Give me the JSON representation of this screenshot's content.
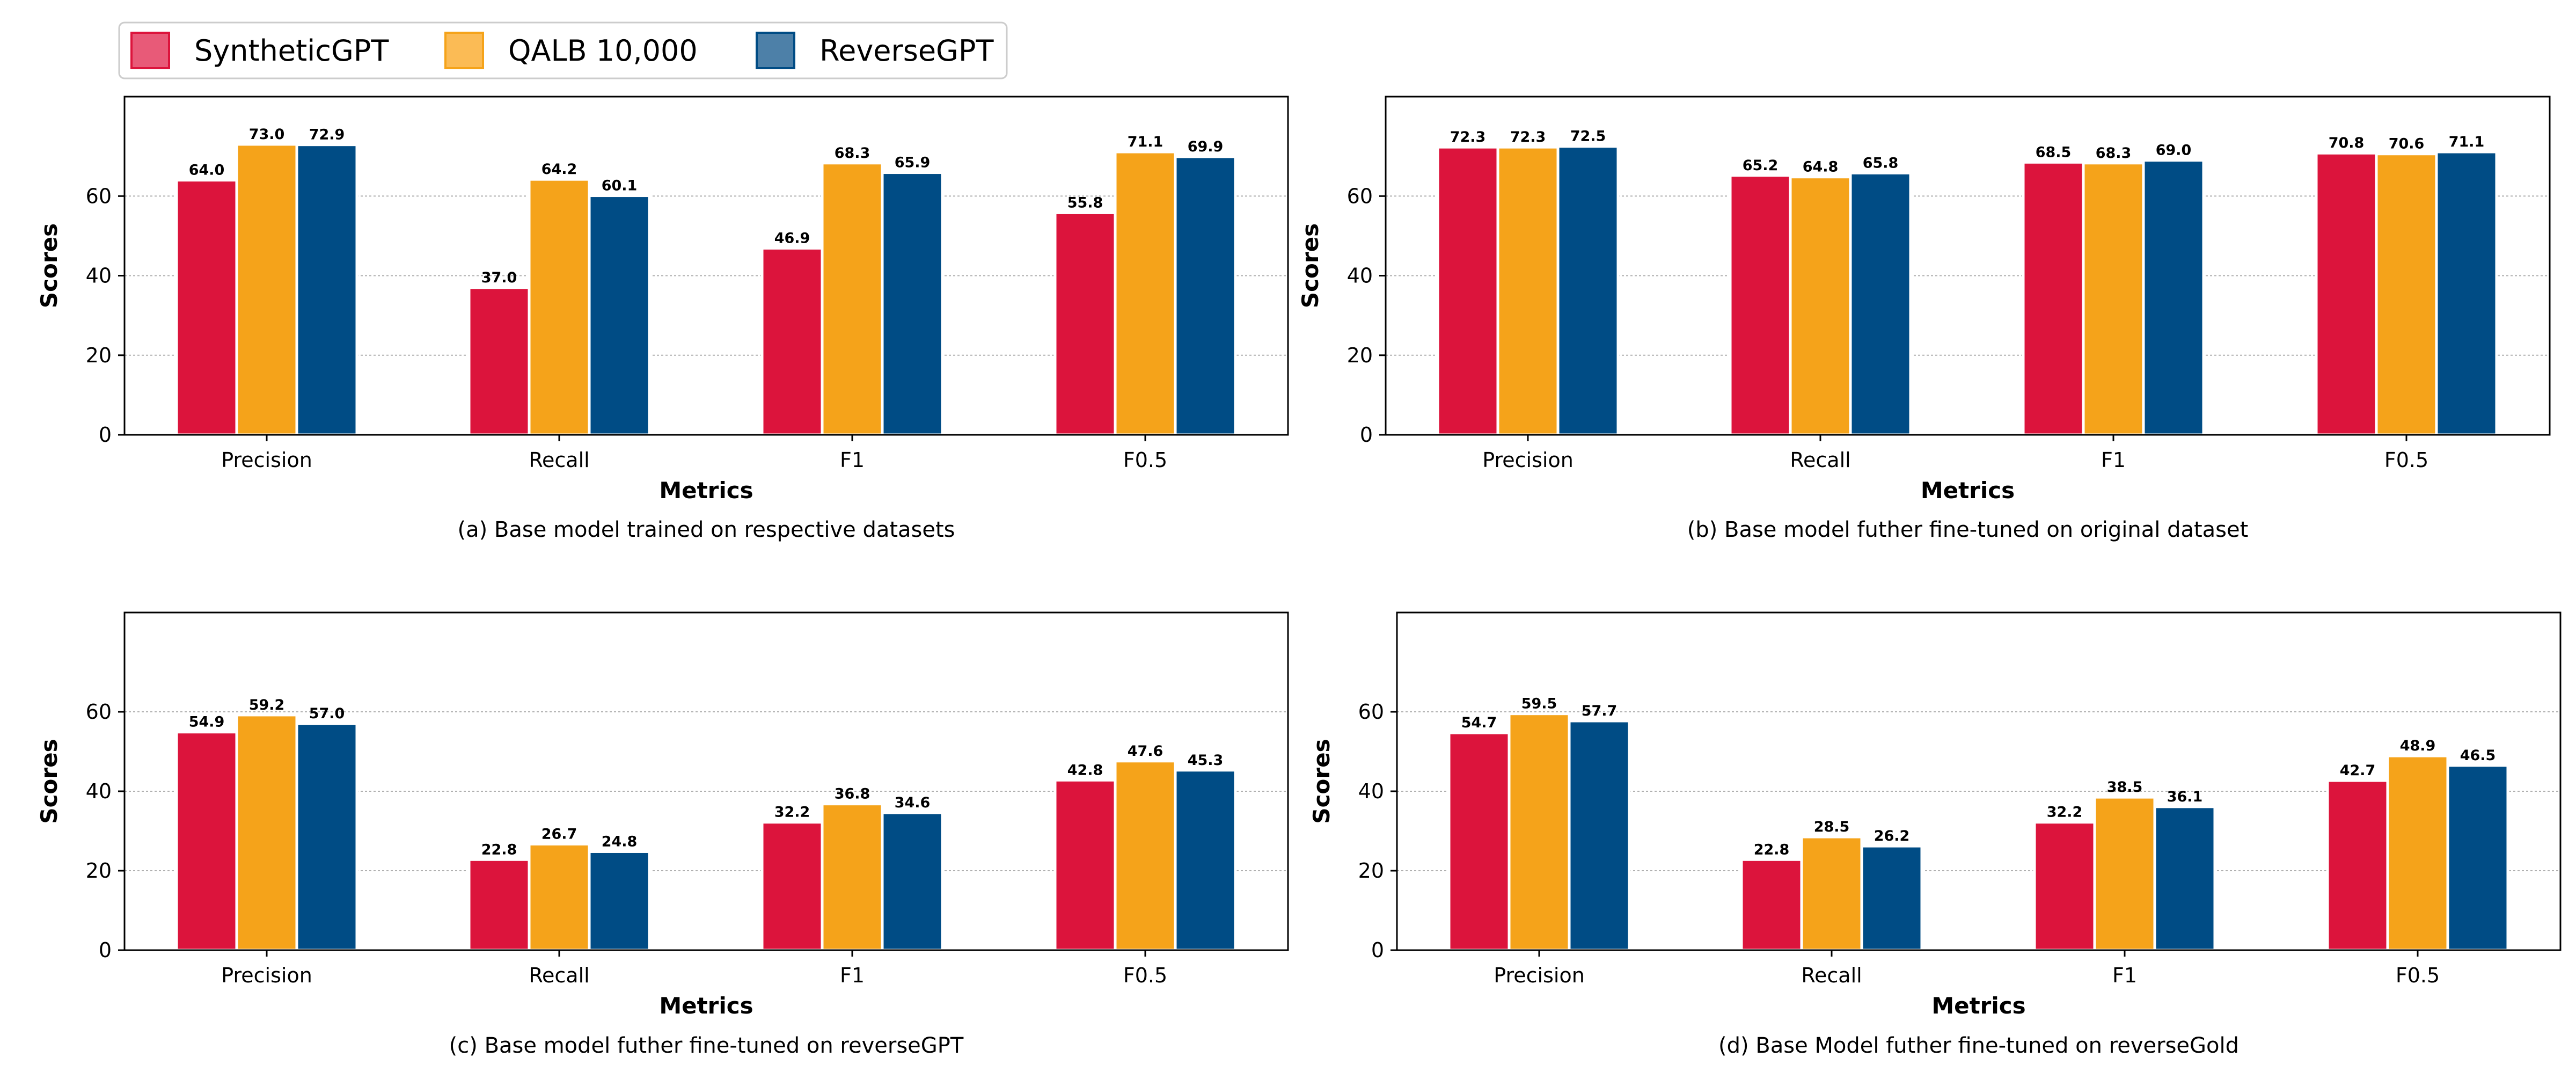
{
  "legend": {
    "entries": [
      {
        "name": "SyntheticGPT",
        "color": "#DC143C",
        "swatch_color": "#E85A78"
      },
      {
        "name": "QALB 10,000",
        "color": "#F5A31A",
        "swatch_color": "#FBBB55"
      },
      {
        "name": "ReverseGPT",
        "color": "#004C85",
        "swatch_color": "#4D80A8"
      }
    ]
  },
  "chart_data": [
    {
      "type": "bar",
      "title": "(a) Base model trained on respective datasets",
      "xlabel": "Metrics",
      "ylabel": "Scores",
      "ylim": [
        0,
        85
      ],
      "yticks": [
        0,
        20,
        40,
        60
      ],
      "categories": [
        "Precision",
        "Recall",
        "F1",
        "F0.5"
      ],
      "series": [
        {
          "name": "SyntheticGPT",
          "values": [
            64.0,
            37.0,
            46.9,
            55.8
          ]
        },
        {
          "name": "QALB 10,000",
          "values": [
            73.0,
            64.2,
            68.3,
            71.1
          ]
        },
        {
          "name": "ReverseGPT",
          "values": [
            72.9,
            60.1,
            65.9,
            69.9
          ]
        }
      ]
    },
    {
      "type": "bar",
      "title": "(b) Base model futher fine-tuned on original dataset",
      "xlabel": "Metrics",
      "ylabel": "Scores",
      "ylim": [
        0,
        85
      ],
      "yticks": [
        0,
        20,
        40,
        60
      ],
      "categories": [
        "Precision",
        "Recall",
        "F1",
        "F0.5"
      ],
      "series": [
        {
          "name": "SyntheticGPT",
          "values": [
            72.3,
            65.2,
            68.5,
            70.8
          ]
        },
        {
          "name": "QALB 10,000",
          "values": [
            72.3,
            64.8,
            68.3,
            70.6
          ]
        },
        {
          "name": "ReverseGPT",
          "values": [
            72.5,
            65.8,
            69.0,
            71.1
          ]
        }
      ]
    },
    {
      "type": "bar",
      "title": "(c) Base model futher fine-tuned on reverseGPT",
      "xlabel": "Metrics",
      "ylabel": "Scores",
      "ylim": [
        0,
        85
      ],
      "yticks": [
        0,
        20,
        40,
        60
      ],
      "categories": [
        "Precision",
        "Recall",
        "F1",
        "F0.5"
      ],
      "series": [
        {
          "name": "SyntheticGPT",
          "values": [
            54.9,
            22.8,
            32.2,
            42.8
          ]
        },
        {
          "name": "QALB 10,000",
          "values": [
            59.2,
            26.7,
            36.8,
            47.6
          ]
        },
        {
          "name": "ReverseGPT",
          "values": [
            57.0,
            24.8,
            34.6,
            45.3
          ]
        }
      ]
    },
    {
      "type": "bar",
      "title": "(d) Base Model futher fine-tuned on reverseGold",
      "xlabel": "Metrics",
      "ylabel": "Scores",
      "ylim": [
        0,
        85
      ],
      "yticks": [
        0,
        20,
        40,
        60
      ],
      "categories": [
        "Precision",
        "Recall",
        "F1",
        "F0.5"
      ],
      "series": [
        {
          "name": "SyntheticGPT",
          "values": [
            54.7,
            22.8,
            32.2,
            42.7
          ]
        },
        {
          "name": "QALB 10,000",
          "values": [
            59.5,
            28.5,
            38.5,
            48.9
          ]
        },
        {
          "name": "ReverseGPT",
          "values": [
            57.7,
            26.2,
            36.1,
            46.5
          ]
        }
      ]
    }
  ]
}
